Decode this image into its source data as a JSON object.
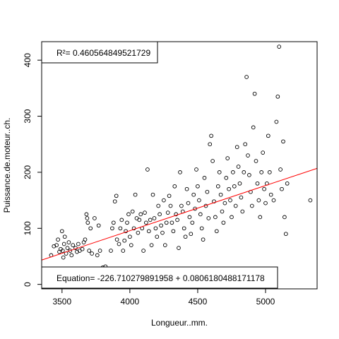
{
  "chart_data": {
    "type": "scatter",
    "xlabel": "Longueur..mm.",
    "ylabel": "Puissance.de.moteur..ch.",
    "x_ticks": [
      3500,
      4000,
      4500,
      5000
    ],
    "y_ticks": [
      0,
      100,
      200,
      300,
      400
    ],
    "xlim": [
      3350,
      5380
    ],
    "ylim": [
      -8,
      433
    ],
    "grid": false,
    "annotations": {
      "r2_label": "R²= 0.460564849521729",
      "equation_label": "Equation= -226.710279891958 + 0.0806180488171178"
    },
    "regression": {
      "intercept": -226.710279891958,
      "slope": 0.0806180488171178,
      "color": "#ff0000"
    },
    "point_color": "#000000",
    "points": [
      [
        3420,
        52
      ],
      [
        3440,
        68
      ],
      [
        3460,
        70
      ],
      [
        3470,
        80
      ],
      [
        3480,
        58
      ],
      [
        3490,
        63
      ],
      [
        3500,
        95
      ],
      [
        3505,
        60
      ],
      [
        3510,
        48
      ],
      [
        3515,
        72
      ],
      [
        3520,
        85
      ],
      [
        3530,
        55
      ],
      [
        3540,
        65
      ],
      [
        3550,
        75
      ],
      [
        3560,
        60
      ],
      [
        3570,
        52
      ],
      [
        3580,
        70
      ],
      [
        3600,
        65
      ],
      [
        3610,
        58
      ],
      [
        3620,
        72
      ],
      [
        3630,
        60
      ],
      [
        3650,
        63
      ],
      [
        3660,
        75
      ],
      [
        3670,
        80
      ],
      [
        3680,
        125
      ],
      [
        3685,
        118
      ],
      [
        3690,
        110
      ],
      [
        3700,
        60
      ],
      [
        3710,
        100
      ],
      [
        3720,
        55
      ],
      [
        3740,
        118
      ],
      [
        3760,
        52
      ],
      [
        3770,
        105
      ],
      [
        3780,
        60
      ],
      [
        3800,
        30
      ],
      [
        3820,
        32
      ],
      [
        3850,
        25
      ],
      [
        3860,
        60
      ],
      [
        3870,
        100
      ],
      [
        3880,
        110
      ],
      [
        3890,
        148
      ],
      [
        3900,
        158
      ],
      [
        3905,
        80
      ],
      [
        3920,
        72
      ],
      [
        3930,
        100
      ],
      [
        3940,
        115
      ],
      [
        3950,
        60
      ],
      [
        3960,
        78
      ],
      [
        3970,
        95
      ],
      [
        3980,
        110
      ],
      [
        3990,
        125
      ],
      [
        4000,
        85
      ],
      [
        4010,
        70
      ],
      [
        4020,
        130
      ],
      [
        4030,
        100
      ],
      [
        4040,
        160
      ],
      [
        4050,
        118
      ],
      [
        4060,
        92
      ],
      [
        4070,
        115
      ],
      [
        4080,
        125
      ],
      [
        4090,
        100
      ],
      [
        4100,
        60
      ],
      [
        4110,
        128
      ],
      [
        4120,
        110
      ],
      [
        4130,
        205
      ],
      [
        4140,
        95
      ],
      [
        4150,
        115
      ],
      [
        4160,
        70
      ],
      [
        4170,
        160
      ],
      [
        4180,
        118
      ],
      [
        4190,
        100
      ],
      [
        4200,
        85
      ],
      [
        4210,
        140
      ],
      [
        4220,
        125
      ],
      [
        4230,
        105
      ],
      [
        4240,
        92
      ],
      [
        4250,
        150
      ],
      [
        4260,
        70
      ],
      [
        4270,
        110
      ],
      [
        4280,
        128
      ],
      [
        4290,
        158
      ],
      [
        4300,
        140
      ],
      [
        4310,
        110
      ],
      [
        4320,
        95
      ],
      [
        4330,
        175
      ],
      [
        4340,
        125
      ],
      [
        4350,
        115
      ],
      [
        4360,
        65
      ],
      [
        4370,
        200
      ],
      [
        4380,
        140
      ],
      [
        4390,
        130
      ],
      [
        4400,
        100
      ],
      [
        4410,
        85
      ],
      [
        4420,
        170
      ],
      [
        4430,
        145
      ],
      [
        4440,
        120
      ],
      [
        4450,
        90
      ],
      [
        4460,
        110
      ],
      [
        4470,
        160
      ],
      [
        4480,
        135
      ],
      [
        4490,
        205
      ],
      [
        4500,
        175
      ],
      [
        4510,
        150
      ],
      [
        4520,
        125
      ],
      [
        4530,
        100
      ],
      [
        4540,
        80
      ],
      [
        4550,
        190
      ],
      [
        4560,
        140
      ],
      [
        4570,
        165
      ],
      [
        4580,
        118
      ],
      [
        4590,
        250
      ],
      [
        4600,
        265
      ],
      [
        4610,
        220
      ],
      [
        4620,
        148
      ],
      [
        4630,
        120
      ],
      [
        4640,
        95
      ],
      [
        4650,
        175
      ],
      [
        4660,
        200
      ],
      [
        4670,
        160
      ],
      [
        4680,
        130
      ],
      [
        4690,
        110
      ],
      [
        4700,
        145
      ],
      [
        4710,
        190
      ],
      [
        4720,
        225
      ],
      [
        4730,
        170
      ],
      [
        4740,
        150
      ],
      [
        4750,
        120
      ],
      [
        4760,
        200
      ],
      [
        4770,
        175
      ],
      [
        4780,
        140
      ],
      [
        4790,
        245
      ],
      [
        4800,
        210
      ],
      [
        4810,
        180
      ],
      [
        4820,
        155
      ],
      [
        4830,
        130
      ],
      [
        4840,
        200
      ],
      [
        4850,
        250
      ],
      [
        4860,
        370
      ],
      [
        4870,
        230
      ],
      [
        4880,
        195
      ],
      [
        4890,
        165
      ],
      [
        4900,
        140
      ],
      [
        4910,
        280
      ],
      [
        4920,
        340
      ],
      [
        4930,
        220
      ],
      [
        4940,
        180
      ],
      [
        4950,
        150
      ],
      [
        4960,
        120
      ],
      [
        4970,
        200
      ],
      [
        4980,
        235
      ],
      [
        4990,
        170
      ],
      [
        5000,
        145
      ],
      [
        5010,
        180
      ],
      [
        5020,
        265
      ],
      [
        5030,
        200
      ],
      [
        5040,
        160
      ],
      [
        5060,
        150
      ],
      [
        5080,
        290
      ],
      [
        5090,
        335
      ],
      [
        5100,
        424
      ],
      [
        5110,
        205
      ],
      [
        5120,
        170
      ],
      [
        5130,
        255
      ],
      [
        5140,
        120
      ],
      [
        5150,
        90
      ],
      [
        5160,
        180
      ],
      [
        5330,
        150
      ]
    ]
  }
}
